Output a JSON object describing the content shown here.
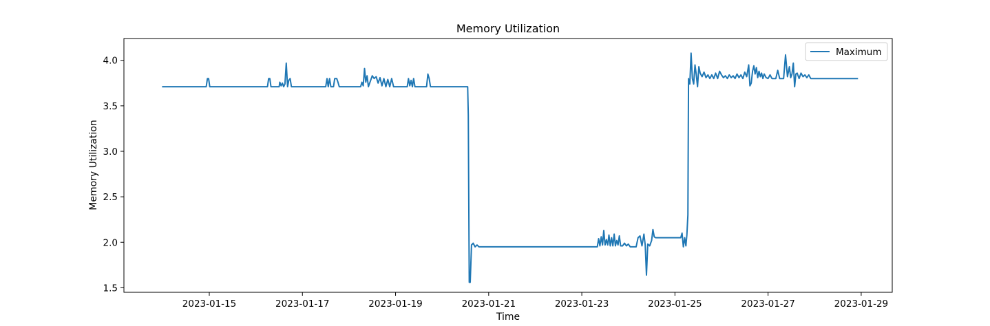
{
  "chart_data": {
    "type": "line",
    "title": "Memory Utilization",
    "xlabel": "Time",
    "ylabel": "Memory Utilization",
    "xlim": [
      "2023-01-13T04:00",
      "2023-01-29T16:00"
    ],
    "ylim": [
      1.45,
      4.24
    ],
    "xticks": [
      "2023-01-15",
      "2023-01-17",
      "2023-01-19",
      "2023-01-21",
      "2023-01-23",
      "2023-01-25",
      "2023-01-27",
      "2023-01-29"
    ],
    "yticks": [
      "1.5",
      "2.0",
      "2.5",
      "3.0",
      "3.5",
      "4.0"
    ],
    "grid": false,
    "legend_position": "top-right",
    "colors": {
      "series": "#1f77b4"
    },
    "series": [
      {
        "name": "Maximum",
        "points": [
          [
            "2023-01-14T00:00",
            3.71
          ],
          [
            "2023-01-14T22:24",
            3.71
          ],
          [
            "2023-01-14T23:02",
            3.8
          ],
          [
            "2023-01-14T23:38",
            3.8
          ],
          [
            "2023-01-15T00:14",
            3.71
          ],
          [
            "2023-01-16T06:00",
            3.71
          ],
          [
            "2023-01-16T06:36",
            3.8
          ],
          [
            "2023-01-16T07:12",
            3.8
          ],
          [
            "2023-01-16T07:48",
            3.71
          ],
          [
            "2023-01-16T12:00",
            3.71
          ],
          [
            "2023-01-16T12:20",
            3.76
          ],
          [
            "2023-01-16T13:00",
            3.72
          ],
          [
            "2023-01-16T13:40",
            3.75
          ],
          [
            "2023-01-16T14:20",
            3.71
          ],
          [
            "2023-01-16T15:00",
            3.74
          ],
          [
            "2023-01-16T15:40",
            3.97
          ],
          [
            "2023-01-16T16:20",
            3.71
          ],
          [
            "2023-01-16T17:00",
            3.78
          ],
          [
            "2023-01-16T17:40",
            3.8
          ],
          [
            "2023-01-16T18:20",
            3.71
          ],
          [
            "2023-01-17T12:00",
            3.71
          ],
          [
            "2023-01-17T12:40",
            3.8
          ],
          [
            "2023-01-17T13:20",
            3.71
          ],
          [
            "2023-01-17T14:00",
            3.8
          ],
          [
            "2023-01-17T14:40",
            3.71
          ],
          [
            "2023-01-17T16:00",
            3.71
          ],
          [
            "2023-01-17T16:40",
            3.8
          ],
          [
            "2023-01-17T17:40",
            3.8
          ],
          [
            "2023-01-17T18:20",
            3.76
          ],
          [
            "2023-01-17T19:00",
            3.71
          ],
          [
            "2023-01-18T06:00",
            3.71
          ],
          [
            "2023-01-18T06:40",
            3.76
          ],
          [
            "2023-01-18T07:20",
            3.72
          ],
          [
            "2023-01-18T08:00",
            3.91
          ],
          [
            "2023-01-18T08:40",
            3.76
          ],
          [
            "2023-01-18T09:20",
            3.83
          ],
          [
            "2023-01-18T10:00",
            3.71
          ],
          [
            "2023-01-18T11:00",
            3.77
          ],
          [
            "2023-01-18T12:00",
            3.83
          ],
          [
            "2023-01-18T13:00",
            3.8
          ],
          [
            "2023-01-18T14:00",
            3.82
          ],
          [
            "2023-01-18T15:00",
            3.75
          ],
          [
            "2023-01-18T16:00",
            3.81
          ],
          [
            "2023-01-18T17:00",
            3.72
          ],
          [
            "2023-01-18T18:00",
            3.8
          ],
          [
            "2023-01-18T19:00",
            3.71
          ],
          [
            "2023-01-18T20:00",
            3.79
          ],
          [
            "2023-01-18T21:00",
            3.71
          ],
          [
            "2023-01-18T22:00",
            3.8
          ],
          [
            "2023-01-18T23:00",
            3.71
          ],
          [
            "2023-01-19T06:00",
            3.71
          ],
          [
            "2023-01-19T06:40",
            3.8
          ],
          [
            "2023-01-19T07:20",
            3.72
          ],
          [
            "2023-01-19T08:00",
            3.78
          ],
          [
            "2023-01-19T08:40",
            3.71
          ],
          [
            "2023-01-19T09:20",
            3.8
          ],
          [
            "2023-01-19T10:00",
            3.71
          ],
          [
            "2023-01-19T16:00",
            3.71
          ],
          [
            "2023-01-19T16:40",
            3.85
          ],
          [
            "2023-01-19T17:20",
            3.8
          ],
          [
            "2023-01-19T18:00",
            3.71
          ],
          [
            "2023-01-20T13:10",
            3.71
          ],
          [
            "2023-01-20T13:30",
            3.4
          ],
          [
            "2023-01-20T14:00",
            1.56
          ],
          [
            "2023-01-20T14:30",
            1.56
          ],
          [
            "2023-01-20T15:10",
            1.97
          ],
          [
            "2023-01-20T16:00",
            1.99
          ],
          [
            "2023-01-20T17:00",
            1.95
          ],
          [
            "2023-01-20T18:00",
            1.97
          ],
          [
            "2023-01-20T19:00",
            1.95
          ],
          [
            "2023-01-23T08:00",
            1.95
          ],
          [
            "2023-01-23T08:40",
            2.04
          ],
          [
            "2023-01-23T09:20",
            1.96
          ],
          [
            "2023-01-23T10:00",
            2.06
          ],
          [
            "2023-01-23T10:40",
            1.97
          ],
          [
            "2023-01-23T11:20",
            2.13
          ],
          [
            "2023-01-23T12:00",
            1.97
          ],
          [
            "2023-01-23T12:40",
            2.03
          ],
          [
            "2023-01-23T13:20",
            1.97
          ],
          [
            "2023-01-23T14:00",
            2.08
          ],
          [
            "2023-01-23T14:40",
            1.96
          ],
          [
            "2023-01-23T15:20",
            2.05
          ],
          [
            "2023-01-23T16:00",
            1.96
          ],
          [
            "2023-01-23T16:40",
            2.09
          ],
          [
            "2023-01-23T17:20",
            1.96
          ],
          [
            "2023-01-23T18:00",
            2.02
          ],
          [
            "2023-01-23T18:40",
            1.97
          ],
          [
            "2023-01-23T19:20",
            2.07
          ],
          [
            "2023-01-23T20:00",
            1.96
          ],
          [
            "2023-01-23T21:00",
            1.96
          ],
          [
            "2023-01-23T22:00",
            1.99
          ],
          [
            "2023-01-23T23:00",
            1.96
          ],
          [
            "2023-01-24T00:00",
            1.98
          ],
          [
            "2023-01-24T01:00",
            1.95
          ],
          [
            "2023-01-24T04:00",
            1.95
          ],
          [
            "2023-01-24T05:00",
            2.05
          ],
          [
            "2023-01-24T06:00",
            2.07
          ],
          [
            "2023-01-24T07:00",
            1.96
          ],
          [
            "2023-01-24T08:00",
            2.09
          ],
          [
            "2023-01-24T08:40",
            1.97
          ],
          [
            "2023-01-24T09:20",
            1.64
          ],
          [
            "2023-01-24T10:00",
            1.98
          ],
          [
            "2023-01-24T11:00",
            1.96
          ],
          [
            "2023-01-24T12:00",
            2.02
          ],
          [
            "2023-01-24T12:40",
            2.14
          ],
          [
            "2023-01-24T13:20",
            2.06
          ],
          [
            "2023-01-24T14:00",
            2.05
          ],
          [
            "2023-01-25T03:00",
            2.05
          ],
          [
            "2023-01-25T03:40",
            2.1
          ],
          [
            "2023-01-25T04:20",
            1.95
          ],
          [
            "2023-01-25T05:00",
            2.05
          ],
          [
            "2023-01-25T05:40",
            1.96
          ],
          [
            "2023-01-25T06:10",
            2.08
          ],
          [
            "2023-01-25T06:40",
            2.3
          ],
          [
            "2023-01-25T07:00",
            3.8
          ],
          [
            "2023-01-25T07:40",
            3.74
          ],
          [
            "2023-01-25T08:20",
            4.08
          ],
          [
            "2023-01-25T09:00",
            3.8
          ],
          [
            "2023-01-25T09:40",
            3.74
          ],
          [
            "2023-01-25T10:20",
            3.95
          ],
          [
            "2023-01-25T11:00",
            3.84
          ],
          [
            "2023-01-25T11:40",
            3.71
          ],
          [
            "2023-01-25T12:20",
            3.93
          ],
          [
            "2023-01-25T13:00",
            3.86
          ],
          [
            "2023-01-25T14:00",
            3.82
          ],
          [
            "2023-01-25T15:00",
            3.87
          ],
          [
            "2023-01-25T16:00",
            3.81
          ],
          [
            "2023-01-25T17:00",
            3.84
          ],
          [
            "2023-01-25T18:00",
            3.8
          ],
          [
            "2023-01-25T19:00",
            3.84
          ],
          [
            "2023-01-25T20:00",
            3.8
          ],
          [
            "2023-01-25T21:00",
            3.86
          ],
          [
            "2023-01-25T22:00",
            3.8
          ],
          [
            "2023-01-25T23:00",
            3.88
          ],
          [
            "2023-01-26T00:00",
            3.84
          ],
          [
            "2023-01-26T01:00",
            3.81
          ],
          [
            "2023-01-26T02:00",
            3.83
          ],
          [
            "2023-01-26T03:00",
            3.8
          ],
          [
            "2023-01-26T04:00",
            3.84
          ],
          [
            "2023-01-26T05:00",
            3.81
          ],
          [
            "2023-01-26T06:00",
            3.83
          ],
          [
            "2023-01-26T07:00",
            3.8
          ],
          [
            "2023-01-26T08:00",
            3.85
          ],
          [
            "2023-01-26T09:00",
            3.81
          ],
          [
            "2023-01-26T10:00",
            3.84
          ],
          [
            "2023-01-26T11:00",
            3.8
          ],
          [
            "2023-01-26T12:00",
            3.87
          ],
          [
            "2023-01-26T13:00",
            3.82
          ],
          [
            "2023-01-26T14:00",
            3.95
          ],
          [
            "2023-01-26T14:40",
            3.72
          ],
          [
            "2023-01-26T15:20",
            3.75
          ],
          [
            "2023-01-26T16:00",
            3.88
          ],
          [
            "2023-01-26T16:40",
            3.94
          ],
          [
            "2023-01-26T17:20",
            3.85
          ],
          [
            "2023-01-26T18:00",
            3.92
          ],
          [
            "2023-01-26T18:40",
            3.81
          ],
          [
            "2023-01-26T19:20",
            3.88
          ],
          [
            "2023-01-26T20:00",
            3.82
          ],
          [
            "2023-01-26T20:40",
            3.86
          ],
          [
            "2023-01-26T21:20",
            3.8
          ],
          [
            "2023-01-26T22:00",
            3.85
          ],
          [
            "2023-01-26T23:00",
            3.81
          ],
          [
            "2023-01-27T00:00",
            3.8
          ],
          [
            "2023-01-27T01:00",
            3.84
          ],
          [
            "2023-01-27T02:00",
            3.8
          ],
          [
            "2023-01-27T04:00",
            3.8
          ],
          [
            "2023-01-27T05:00",
            3.89
          ],
          [
            "2023-01-27T06:00",
            3.8
          ],
          [
            "2023-01-27T08:00",
            3.8
          ],
          [
            "2023-01-27T09:00",
            4.06
          ],
          [
            "2023-01-27T10:00",
            3.82
          ],
          [
            "2023-01-27T11:00",
            3.93
          ],
          [
            "2023-01-27T11:40",
            3.81
          ],
          [
            "2023-01-27T12:20",
            3.85
          ],
          [
            "2023-01-27T13:00",
            3.97
          ],
          [
            "2023-01-27T13:40",
            3.71
          ],
          [
            "2023-01-27T14:20",
            3.85
          ],
          [
            "2023-01-27T15:00",
            3.86
          ],
          [
            "2023-01-27T16:00",
            3.8
          ],
          [
            "2023-01-27T17:00",
            3.86
          ],
          [
            "2023-01-27T18:00",
            3.82
          ],
          [
            "2023-01-27T19:00",
            3.84
          ],
          [
            "2023-01-27T20:00",
            3.81
          ],
          [
            "2023-01-27T21:00",
            3.84
          ],
          [
            "2023-01-27T22:00",
            3.8
          ],
          [
            "2023-01-28T22:00",
            3.8
          ]
        ]
      }
    ]
  }
}
